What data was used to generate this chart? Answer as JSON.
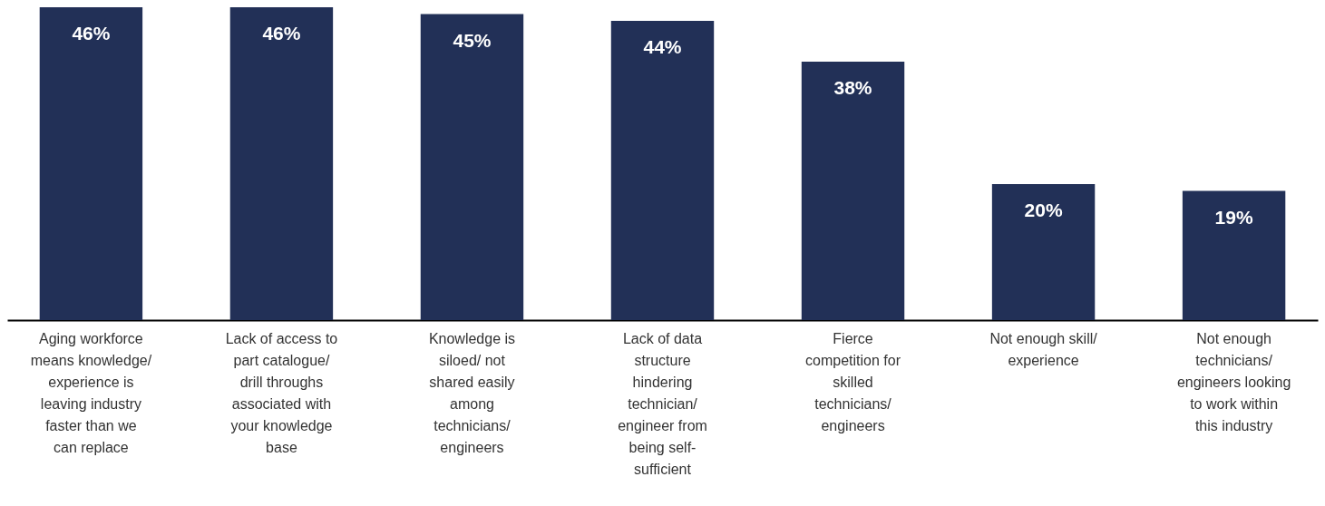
{
  "chart_data": {
    "type": "bar",
    "categories": [
      "Aging workforce means knowledge/ experience is leaving industry faster than we can replace",
      "Lack of access to part catalogue/ drill throughs associated with your knowledge base",
      "Knowledge is siloed/ not shared easily among technicians/ engineers",
      "Lack of data structure hindering technician/ engineer from being self-sufficient",
      "Fierce competition for skilled technicians/ engineers",
      "Not enough skill/ experience",
      "Not enough technicians/ engineers looking to work within this industry"
    ],
    "values": [
      46,
      46,
      45,
      44,
      38,
      20,
      19
    ],
    "value_labels": [
      "46%",
      "46%",
      "45%",
      "44%",
      "38%",
      "20%",
      "19%"
    ],
    "color": "#223057"
  }
}
